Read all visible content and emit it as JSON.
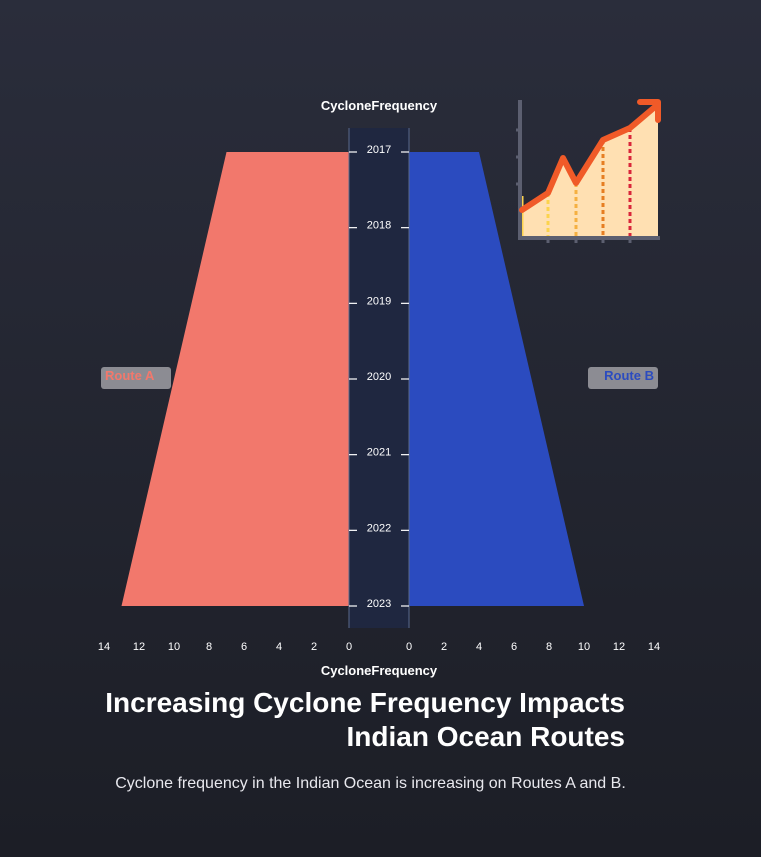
{
  "chart_data": {
    "type": "area",
    "title": "Increasing Cyclone Frequency Impacts Indian Ocean Routes",
    "subtitle": "Cyclone frequency in the Indian Ocean is increasing on Routes A and B.",
    "top_axis_label": "CycloneFrequency",
    "bottom_axis_label": "CycloneFrequency",
    "categories": [
      "2017",
      "2018",
      "2019",
      "2020",
      "2021",
      "2022",
      "2023"
    ],
    "series": [
      {
        "name": "Route A",
        "side": "left",
        "color": "#f2786c",
        "values": [
          7,
          8,
          9,
          10,
          11,
          12,
          13
        ]
      },
      {
        "name": "Route B",
        "side": "right",
        "color": "#2b4bbf",
        "values": [
          4,
          5,
          6,
          7,
          8,
          9,
          10
        ]
      }
    ],
    "xlim": [
      0,
      14
    ],
    "x_ticks_left": [
      "14",
      "12",
      "10",
      "8",
      "6",
      "4",
      "2",
      "0"
    ],
    "x_ticks_right": [
      "0",
      "2",
      "4",
      "6",
      "8",
      "10",
      "12",
      "14"
    ],
    "grid": false
  },
  "legend": {
    "route_a": "Route A",
    "route_b": "Route B"
  },
  "decoration": {
    "icon": "growth-chart-icon",
    "accent": "#f05a28",
    "fill": "#ffe0b2"
  }
}
